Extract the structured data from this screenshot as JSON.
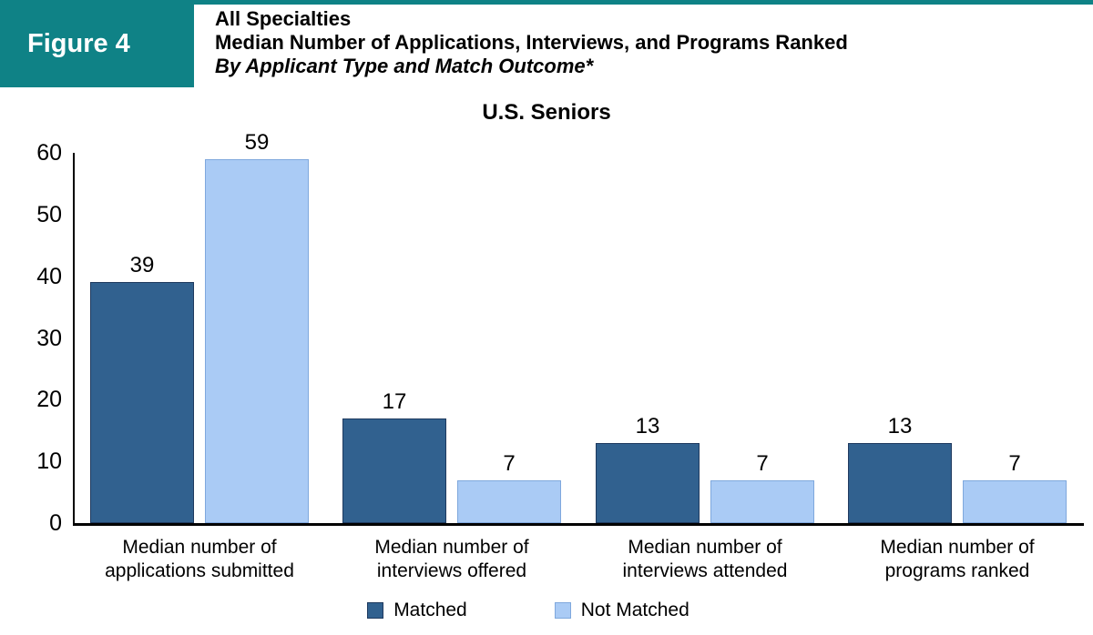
{
  "figure_label": "Figure 4",
  "header": {
    "line1": "All Specialties",
    "line2": "Median Number of Applications, Interviews, and Programs Ranked",
    "line3": "By Applicant Type and Match Outcome*"
  },
  "chart_data": {
    "type": "bar",
    "title": "U.S. Seniors",
    "categories": [
      "Median number of\napplications submitted",
      "Median number of\ninterviews offered",
      "Median number of\ninterviews attended",
      "Median number of\nprograms ranked"
    ],
    "series": [
      {
        "name": "Matched",
        "color": "#31618F",
        "border": "#1F3A5F",
        "values": [
          39,
          17,
          13,
          13
        ]
      },
      {
        "name": "Not Matched",
        "color": "#AACBF5",
        "border": "#7FA8DD",
        "values": [
          59,
          7,
          7,
          7
        ]
      }
    ],
    "ylim": [
      0,
      60
    ],
    "yticks": [
      0,
      10,
      20,
      30,
      40,
      50,
      60
    ],
    "grid": false,
    "legend_position": "bottom",
    "bar_labels": true
  },
  "colors": {
    "teal": "#0F8286",
    "axis": "#000000",
    "background": "#FFFFFF"
  }
}
